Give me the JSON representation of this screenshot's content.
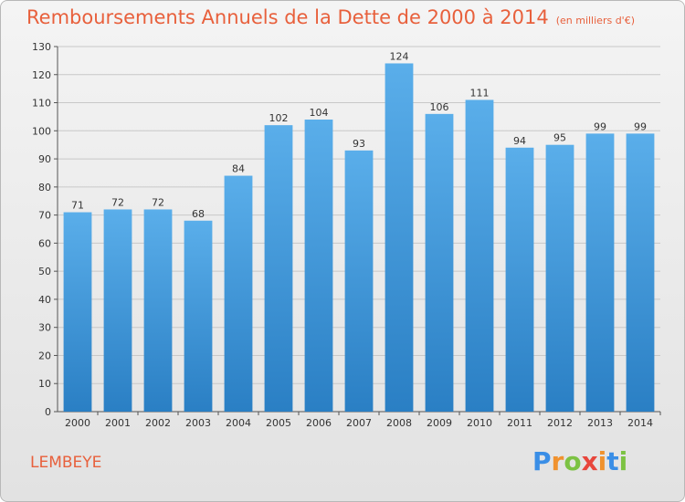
{
  "title": "Remboursements Annuels de la Dette de 2000 à 2014",
  "unit_note": "(en milliers d'€)",
  "commune": "LEMBEYE",
  "brand": {
    "letters": [
      "P",
      "r",
      "o",
      "x",
      "i",
      "t",
      "i"
    ],
    "colors": [
      "#3a8ee6",
      "#f0922e",
      "#7cc243",
      "#e8463c",
      "#f0922e",
      "#3a8ee6",
      "#7cc243"
    ]
  },
  "colors": {
    "bar_top": "#5aaeea",
    "bar_bottom": "#2a7fc4",
    "title": "#e8603c",
    "grid": "#c8c8c8"
  },
  "chart_data": {
    "type": "bar",
    "categories": [
      "2000",
      "2001",
      "2002",
      "2003",
      "2004",
      "2005",
      "2006",
      "2007",
      "2008",
      "2009",
      "2010",
      "2011",
      "2012",
      "2013",
      "2014"
    ],
    "values": [
      71,
      72,
      72,
      68,
      84,
      102,
      104,
      93,
      124,
      106,
      111,
      94,
      95,
      99,
      99
    ],
    "title": "Remboursements Annuels de la Dette de 2000 à 2014",
    "ylim": [
      0,
      130
    ],
    "yticks": [
      0,
      10,
      20,
      30,
      40,
      50,
      60,
      70,
      80,
      90,
      100,
      110,
      120,
      130
    ],
    "grid": true,
    "data_labels": true
  }
}
